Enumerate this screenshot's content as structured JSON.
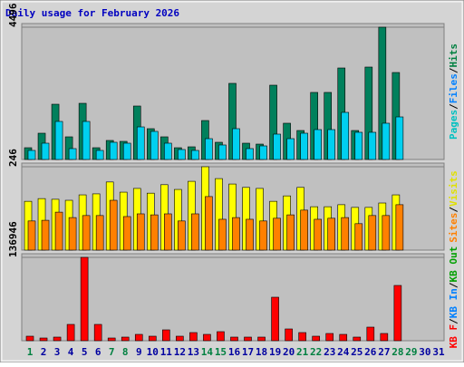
{
  "title": "Daily usage for February 2026",
  "chart_data": [
    {
      "type": "bar",
      "ylim": [
        0,
        4496
      ],
      "yticks": [
        4496
      ],
      "legend": [
        {
          "name": "Pages",
          "color": "#00c0c0"
        },
        {
          "name": "Files",
          "color": "#0080ff"
        },
        {
          "name": "Hits",
          "color": "#008040"
        }
      ],
      "legend_separator": "/",
      "series": [
        {
          "color": "#00805c",
          "values": [
            400,
            893,
            1878,
            770,
            1909,
            400,
            647,
            616,
            1817,
            1047,
            770,
            400,
            431,
            1324,
            585,
            2587,
            554,
            523,
            2525,
            1232,
            985,
            2279,
            2279,
            3110,
            985,
            3141,
            4496,
            2956,
            0,
            0,
            0
          ]
        },
        {
          "color": "#00d0f0",
          "values": [
            308,
            554,
            1293,
            370,
            1293,
            308,
            585,
            554,
            1108,
            955,
            554,
            339,
            308,
            708,
            493,
            1047,
            370,
            462,
            862,
            708,
            893,
            1016,
            1016,
            1601,
            924,
            924,
            1232,
            1447,
            0,
            0,
            0
          ]
        }
      ]
    },
    {
      "type": "bar",
      "ylim": [
        0,
        246
      ],
      "yticks": [
        246
      ],
      "legend": [
        {
          "name": "Sites",
          "color": "#ff8000"
        },
        {
          "name": "Visits",
          "color": "#e0e000"
        }
      ],
      "legend_separator": "/",
      "series": [
        {
          "color": "#ffff00",
          "values": [
            144,
            152,
            150,
            147,
            163,
            166,
            201,
            171,
            182,
            168,
            193,
            179,
            203,
            246,
            211,
            195,
            185,
            182,
            144,
            160,
            185,
            128,
            128,
            134,
            126,
            126,
            139,
            163,
            0,
            0,
            0
          ]
        },
        {
          "color": "#ff8000",
          "values": [
            86,
            88,
            112,
            96,
            102,
            102,
            147,
            99,
            107,
            104,
            107,
            86,
            107,
            158,
            91,
            96,
            91,
            86,
            94,
            104,
            118,
            91,
            94,
            96,
            78,
            102,
            102,
            134,
            0,
            0,
            0
          ]
        }
      ]
    },
    {
      "type": "bar",
      "ylim": [
        0,
        136946
      ],
      "yticks": [
        136946
      ],
      "legend": [
        {
          "name": "KB F",
          "color": "#ff0000"
        },
        {
          "name": "KB In",
          "color": "#0080ff"
        },
        {
          "name": "KB Out",
          "color": "#00a000"
        }
      ],
      "legend_separator": "/",
      "categories": [
        "1",
        "2",
        "3",
        "4",
        "5",
        "6",
        "7",
        "8",
        "9",
        "10",
        "11",
        "12",
        "13",
        "14",
        "15",
        "16",
        "17",
        "18",
        "19",
        "20",
        "21",
        "22",
        "23",
        "24",
        "25",
        "26",
        "27",
        "28",
        "29",
        "30",
        "31"
      ],
      "weekend": [
        1,
        7,
        8,
        14,
        15,
        21,
        22,
        28,
        29
      ],
      "weekend_color": "#008040",
      "weekday_color": "#0000a0",
      "series": [
        {
          "color": "#ff0000",
          "values": [
            7443,
            4466,
            5954,
            26794,
            136946,
            26794,
            4466,
            5954,
            10420,
            7443,
            17862,
            7443,
            13397,
            10420,
            14885,
            5954,
            5954,
            5954,
            71450,
            19351,
            13397,
            7443,
            11908,
            10420,
            5954,
            22328,
            11908,
            90800,
            0,
            0,
            0
          ]
        }
      ]
    }
  ]
}
